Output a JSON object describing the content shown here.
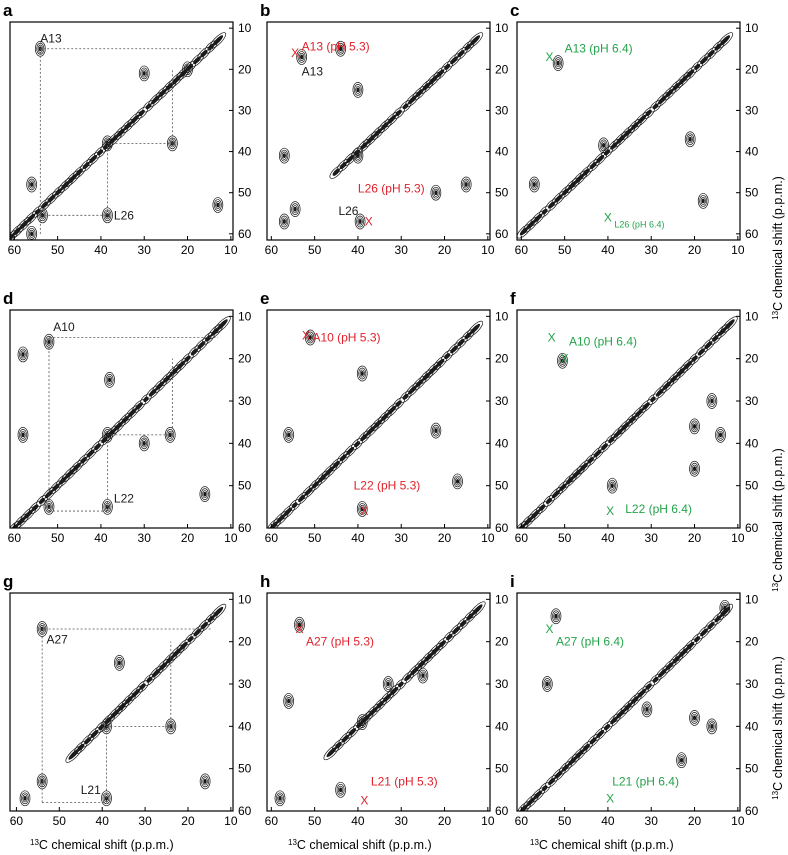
{
  "figure": {
    "panel_grid": {
      "rows": 3,
      "cols": 3
    },
    "colors": {
      "ink": "#1a1a1a",
      "ph53": "#e0222b",
      "ph64": "#23a34a",
      "dashed": "#555555"
    },
    "xlabel_prefix": "13",
    "xlabel": "C chemical shift (p.p.m.)",
    "ylabel_prefix": "13",
    "ylabel": "C chemical shift (p.p.m.)"
  },
  "chart_data": [
    {
      "type": "contour",
      "panel": "a",
      "x_ticks": [
        60,
        50,
        40,
        30,
        20,
        10
      ],
      "y_ticks": [
        10,
        20,
        30,
        40,
        50,
        60
      ],
      "xlim": [
        61,
        9.5
      ],
      "ylim": [
        8.5,
        61.5
      ],
      "diagonal": {
        "x0": 13,
        "x1": 62
      },
      "peaks": [
        [
          54,
          15
        ],
        [
          23.5,
          38
        ],
        [
          38.5,
          38
        ],
        [
          53.5,
          55.5
        ],
        [
          38.5,
          55.5
        ],
        [
          30,
          21
        ],
        [
          56,
          48
        ],
        [
          13,
          53
        ],
        [
          20,
          20
        ],
        [
          56,
          60
        ]
      ],
      "connectors": [
        {
          "x": [
            54,
            54,
            14
          ],
          "y": [
            60,
            15,
            15
          ]
        },
        {
          "x": [
            54,
            38.5
          ],
          "y": [
            55.5,
            55.5
          ]
        },
        {
          "x": [
            38.5,
            38.5,
            23.5,
            23.5
          ],
          "y": [
            55.5,
            38,
            38,
            20
          ]
        }
      ],
      "labels": [
        {
          "text": "A13",
          "x": 54,
          "y": 12.5,
          "style": "ink"
        },
        {
          "text": "L26",
          "x": 37,
          "y": 55.5,
          "style": "ink"
        }
      ],
      "markers": []
    },
    {
      "type": "contour",
      "panel": "b",
      "x_ticks": [
        60,
        50,
        40,
        30,
        20,
        10
      ],
      "y_ticks": [
        10,
        20,
        30,
        40,
        50,
        60
      ],
      "xlim": [
        61,
        9.5
      ],
      "ylim": [
        8.5,
        61.5
      ],
      "diagonal": {
        "x0": 13,
        "x1": 46
      },
      "peaks": [
        [
          53,
          17
        ],
        [
          40,
          25
        ],
        [
          57,
          41
        ],
        [
          40,
          41
        ],
        [
          54.5,
          54
        ],
        [
          39.5,
          57
        ],
        [
          57,
          57
        ],
        [
          22,
          50
        ],
        [
          44,
          15
        ],
        [
          15,
          48
        ]
      ],
      "connectors": [],
      "labels": [
        {
          "text": "A13 (pH 5.3)",
          "x": 53,
          "y": 14.5,
          "style": "ph53"
        },
        {
          "text": "A13",
          "x": 53,
          "y": 20.5,
          "style": "ink"
        },
        {
          "text": "L26 (pH 5.3)",
          "x": 40,
          "y": 49,
          "style": "ph53"
        },
        {
          "text": "L26",
          "x": 44.5,
          "y": 54.5,
          "style": "ink"
        }
      ],
      "markers": [
        {
          "x": 54.5,
          "y": 16,
          "style": "ph53"
        },
        {
          "x": 37.5,
          "y": 57,
          "style": "ph53"
        }
      ]
    },
    {
      "type": "contour",
      "panel": "c",
      "x_ticks": [
        60,
        50,
        40,
        30,
        20,
        10
      ],
      "y_ticks": [
        10,
        20,
        30,
        40,
        50,
        60
      ],
      "xlim": [
        61,
        9.5
      ],
      "ylim": [
        8.5,
        61.5
      ],
      "diagonal": {
        "x0": 13,
        "x1": 60
      },
      "peaks": [
        [
          51.5,
          18.5
        ],
        [
          41,
          38.5
        ],
        [
          18,
          52
        ],
        [
          21,
          37
        ],
        [
          57,
          48
        ]
      ],
      "connectors": [],
      "labels": [
        {
          "text": "A13 (pH 6.4)",
          "x": 50,
          "y": 15,
          "style": "ph64"
        },
        {
          "text": "L26 (pH 6.4)",
          "x": 38.5,
          "y": 57.5,
          "style": "ph64",
          "small": true
        }
      ],
      "markers": [
        {
          "x": 53.5,
          "y": 17,
          "style": "ph64"
        },
        {
          "x": 40,
          "y": 56,
          "style": "ph64"
        }
      ]
    },
    {
      "type": "contour",
      "panel": "d",
      "x_ticks": [
        60,
        50,
        40,
        30,
        20,
        10
      ],
      "y_ticks": [
        10,
        20,
        30,
        40,
        50,
        60
      ],
      "xlim": [
        61,
        9.5
      ],
      "ylim": [
        8.5,
        60
      ],
      "diagonal": {
        "x0": 12,
        "x1": 61
      },
      "peaks": [
        [
          52,
          16
        ],
        [
          24,
          38
        ],
        [
          38.5,
          38
        ],
        [
          38.5,
          55
        ],
        [
          52,
          55
        ],
        [
          58,
          38
        ],
        [
          16,
          52
        ],
        [
          30,
          40
        ],
        [
          58,
          19
        ],
        [
          38,
          25
        ]
      ],
      "connectors": [
        {
          "x": [
            52,
            52,
            13
          ],
          "y": [
            56.5,
            15,
            15
          ]
        },
        {
          "x": [
            52,
            38.5
          ],
          "y": [
            56,
            56
          ]
        },
        {
          "x": [
            38.5,
            38.5,
            23.5,
            23.5
          ],
          "y": [
            56,
            38,
            38,
            20
          ]
        }
      ],
      "labels": [
        {
          "text": "A10",
          "x": 51,
          "y": 12.5,
          "style": "ink"
        },
        {
          "text": "L22",
          "x": 37,
          "y": 53,
          "style": "ink"
        }
      ],
      "markers": []
    },
    {
      "type": "contour",
      "panel": "e",
      "x_ticks": [
        60,
        50,
        40,
        30,
        20,
        10
      ],
      "y_ticks": [
        10,
        20,
        30,
        40,
        50,
        60
      ],
      "xlim": [
        61,
        9.5
      ],
      "ylim": [
        8.5,
        60
      ],
      "diagonal": {
        "x0": 13,
        "x1": 60
      },
      "peaks": [
        [
          39,
          55.5
        ],
        [
          39,
          23.5
        ],
        [
          22,
          37
        ],
        [
          17,
          49
        ],
        [
          51,
          15
        ],
        [
          56,
          38
        ]
      ],
      "connectors": [],
      "labels": [
        {
          "text": "A10 (pH 5.3)",
          "x": 50.5,
          "y": 15,
          "style": "ph53"
        },
        {
          "text": "L22 (pH 5.3)",
          "x": 41,
          "y": 50,
          "style": "ph53"
        }
      ],
      "markers": [
        {
          "x": 52,
          "y": 14.5,
          "style": "ph53"
        },
        {
          "x": 38.5,
          "y": 56,
          "style": "ph53"
        }
      ]
    },
    {
      "type": "contour",
      "panel": "f",
      "x_ticks": [
        60,
        50,
        40,
        30,
        20,
        10
      ],
      "y_ticks": [
        10,
        20,
        30,
        40,
        50,
        60
      ],
      "xlim": [
        61,
        9.5
      ],
      "ylim": [
        8.5,
        60
      ],
      "diagonal": {
        "x0": 12,
        "x1": 61
      },
      "peaks": [
        [
          50.5,
          20.5
        ],
        [
          20,
          36
        ],
        [
          14,
          38
        ],
        [
          20,
          46
        ],
        [
          39,
          50
        ],
        [
          16,
          30
        ]
      ],
      "connectors": [],
      "labels": [
        {
          "text": "A10 (pH 6.4)",
          "x": 49,
          "y": 16,
          "style": "ph64"
        },
        {
          "text": "L22 (pH 6.4)",
          "x": 36,
          "y": 55.5,
          "style": "ph64"
        }
      ],
      "markers": [
        {
          "x": 53,
          "y": 15,
          "style": "ph64"
        },
        {
          "x": 50,
          "y": 20,
          "style": "ph64"
        },
        {
          "x": 39.5,
          "y": 56,
          "style": "ph64"
        }
      ]
    },
    {
      "type": "contour",
      "panel": "g",
      "x_ticks": [
        60,
        50,
        40,
        30,
        20,
        10
      ],
      "y_ticks": [
        10,
        20,
        30,
        40,
        50,
        60
      ],
      "xlim": [
        61.5,
        9.5
      ],
      "ylim": [
        8.5,
        60
      ],
      "diagonal": {
        "x0": 13,
        "x1": 47
      },
      "peaks": [
        [
          54,
          17
        ],
        [
          36,
          25
        ],
        [
          24,
          40
        ],
        [
          39,
          40
        ],
        [
          54,
          53
        ],
        [
          39,
          57
        ],
        [
          58,
          57
        ],
        [
          16,
          53
        ]
      ],
      "connectors": [
        {
          "x": [
            54,
            54,
            14.5
          ],
          "y": [
            58,
            17,
            17
          ]
        },
        {
          "x": [
            54,
            39
          ],
          "y": [
            58,
            58
          ]
        },
        {
          "x": [
            39,
            39,
            24,
            24
          ],
          "y": [
            58,
            40,
            40,
            20
          ]
        }
      ],
      "labels": [
        {
          "text": "A27",
          "x": 53,
          "y": 19.5,
          "style": "ink"
        },
        {
          "text": "L21",
          "x": 45,
          "y": 55,
          "style": "ink"
        }
      ],
      "markers": []
    },
    {
      "type": "contour",
      "panel": "h",
      "x_ticks": [
        60,
        50,
        40,
        30,
        20,
        10
      ],
      "y_ticks": [
        10,
        20,
        30,
        40,
        50,
        60
      ],
      "xlim": [
        61,
        9.5
      ],
      "ylim": [
        8.5,
        60
      ],
      "diagonal": {
        "x0": 12.5,
        "x1": 47
      },
      "peaks": [
        [
          53.5,
          16
        ],
        [
          39,
          39
        ],
        [
          58,
          57
        ],
        [
          44,
          55
        ],
        [
          25,
          28
        ],
        [
          33,
          30
        ],
        [
          56,
          34
        ]
      ],
      "connectors": [],
      "labels": [
        {
          "text": "A27 (pH 5.3)",
          "x": 52,
          "y": 20,
          "style": "ph53"
        },
        {
          "text": "L21 (pH 5.3)",
          "x": 37,
          "y": 53,
          "style": "ph53"
        }
      ],
      "markers": [
        {
          "x": 53.5,
          "y": 17,
          "style": "ph53"
        },
        {
          "x": 38.5,
          "y": 57.5,
          "style": "ph53"
        }
      ]
    },
    {
      "type": "contour",
      "panel": "i",
      "x_ticks": [
        60,
        50,
        40,
        30,
        20,
        10
      ],
      "y_ticks": [
        10,
        20,
        30,
        40,
        50,
        60
      ],
      "xlim": [
        61,
        9.5
      ],
      "ylim": [
        8.5,
        60
      ],
      "diagonal": {
        "x0": 13,
        "x1": 60
      },
      "peaks": [
        [
          13,
          12
        ],
        [
          52,
          14
        ],
        [
          20,
          38
        ],
        [
          16,
          40
        ],
        [
          31,
          36
        ],
        [
          23,
          48
        ],
        [
          54,
          30
        ]
      ],
      "connectors": [],
      "labels": [
        {
          "text": "A27 (pH 6.4)",
          "x": 52,
          "y": 20,
          "style": "ph64"
        },
        {
          "text": "L21 (pH 6.4)",
          "x": 39,
          "y": 53,
          "style": "ph64"
        }
      ],
      "markers": [
        {
          "x": 53.5,
          "y": 17,
          "style": "ph64"
        },
        {
          "x": 39.5,
          "y": 57,
          "style": "ph64"
        }
      ]
    }
  ]
}
